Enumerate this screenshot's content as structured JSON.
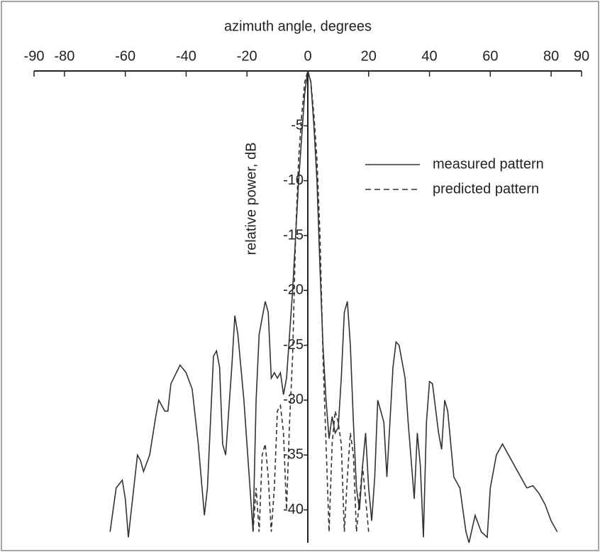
{
  "chart_data": {
    "type": "line",
    "xlabel": "azimuth angle, degrees",
    "ylabel": "relative power, dB",
    "xlim": [
      -90,
      90
    ],
    "xticks": [
      -90,
      -80,
      -60,
      -40,
      -20,
      0,
      20,
      40,
      60,
      80,
      90
    ],
    "ylim": [
      -43,
      0
    ],
    "yticks": [
      -40,
      -35,
      -30,
      -25,
      -20,
      -15,
      -10,
      -5
    ],
    "legend": "upper right",
    "series": [
      {
        "name": "measured pattern",
        "color": "#333333",
        "dash": "solid",
        "x": [
          -65,
          -63,
          -61,
          -60,
          -59,
          -58,
          -56,
          -55,
          -54,
          -52,
          -50,
          -49,
          -47,
          -46,
          -45,
          -42,
          -40,
          -38,
          -36,
          -34,
          -33,
          -31,
          -30,
          -29,
          -28,
          -27,
          -25,
          -24,
          -23,
          -21,
          -20,
          -19,
          -18,
          -17,
          -16,
          -14,
          -13,
          -12,
          -11,
          -10,
          -9,
          -8,
          -7,
          -5,
          -3,
          -1,
          0,
          1,
          2,
          3,
          4,
          5,
          6,
          7,
          8,
          9,
          10,
          11,
          12,
          13,
          14,
          15,
          16,
          17,
          18,
          19,
          20,
          21,
          22,
          23,
          24,
          25,
          26,
          27,
          28,
          29,
          30,
          32,
          33,
          35,
          36,
          37,
          38,
          39,
          40,
          41,
          43,
          44,
          45,
          46,
          48,
          50,
          52,
          53,
          55,
          57,
          59,
          60,
          62,
          64,
          66,
          68,
          70,
          72,
          74,
          76,
          78,
          80,
          82
        ],
        "values": [
          -42,
          -38,
          -37.3,
          -39,
          -42.5,
          -40,
          -35,
          -35.5,
          -36.5,
          -35,
          -31.5,
          -30,
          -31,
          -31,
          -28.5,
          -26.8,
          -27.5,
          -29,
          -34,
          -40.5,
          -38,
          -26,
          -25.5,
          -27,
          -34,
          -35,
          -27,
          -22.3,
          -24,
          -30,
          -34,
          -38,
          -42,
          -30,
          -24,
          -21,
          -22,
          -28,
          -27.5,
          -28,
          -27.5,
          -29.5,
          -28,
          -20,
          -10,
          -2,
          0,
          -1,
          -5,
          -10,
          -18,
          -25,
          -30,
          -33.5,
          -31.5,
          -33,
          -32.5,
          -28,
          -22,
          -21,
          -25,
          -32,
          -38,
          -40,
          -36,
          -33,
          -38,
          -41,
          -37,
          -30,
          -31,
          -32,
          -37,
          -32,
          -27,
          -24.7,
          -25,
          -28,
          -32,
          -39,
          -33,
          -36,
          -42.5,
          -32,
          -28.3,
          -28.5,
          -33,
          -34.5,
          -30,
          -31,
          -37,
          -38,
          -42,
          -43,
          -40.5,
          -42,
          -42.5,
          -38,
          -35,
          -34,
          -35,
          -36,
          -37,
          -38,
          -37.8,
          -38.5,
          -39.5,
          -41,
          -42
        ]
      },
      {
        "name": "predicted pattern",
        "color": "#333333",
        "dash": "dashed",
        "x": [
          -18,
          -17,
          -16,
          -15,
          -14,
          -13,
          -12,
          -11,
          -10,
          -9,
          -8,
          -7,
          -6,
          -5,
          -4,
          -3,
          -2,
          -1,
          0,
          1,
          2,
          3,
          4,
          5,
          6,
          7,
          8,
          9,
          10,
          11,
          12,
          13,
          14,
          15,
          16,
          17,
          18,
          19,
          20
        ],
        "values": [
          -42,
          -38,
          -42,
          -35,
          -34,
          -37,
          -42,
          -38,
          -31,
          -30.5,
          -33,
          -40,
          -32,
          -26,
          -15,
          -8,
          -4,
          -1,
          0,
          -1,
          -4,
          -8,
          -15,
          -26,
          -34,
          -42,
          -34,
          -31,
          -32,
          -34,
          -42,
          -37,
          -33,
          -35,
          -42,
          -39,
          -36,
          -39,
          -42
        ]
      }
    ]
  }
}
